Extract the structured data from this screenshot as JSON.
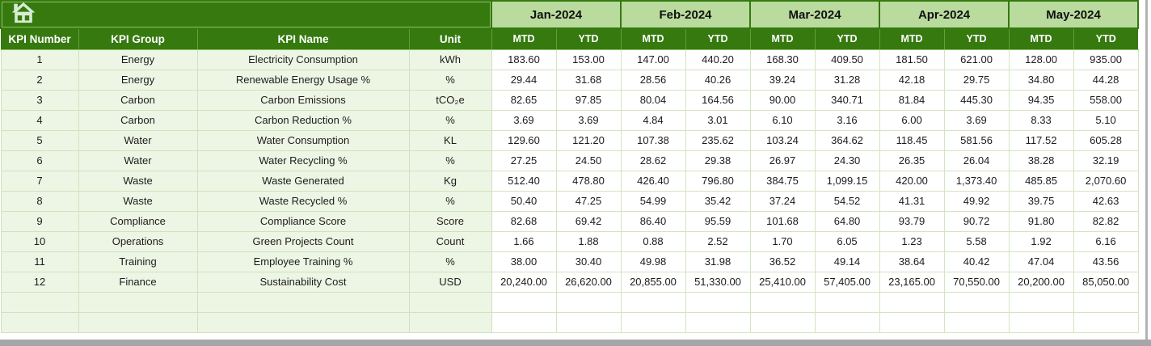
{
  "table": {
    "corner_icon": "home-icon",
    "months": [
      "Jan-2024",
      "Feb-2024",
      "Mar-2024",
      "Apr-2024",
      "May-2024"
    ],
    "value_columns": [
      "MTD",
      "YTD"
    ],
    "columns": [
      "KPI Number",
      "KPI Group",
      "KPI Name",
      "Unit"
    ],
    "rows": [
      {
        "number": "1",
        "group": "Energy",
        "name": "Electricity Consumption",
        "unit": "kWh",
        "values": [
          "183.60",
          "153.00",
          "147.00",
          "440.20",
          "168.30",
          "409.50",
          "181.50",
          "621.00",
          "128.00",
          "935.00"
        ]
      },
      {
        "number": "2",
        "group": "Energy",
        "name": "Renewable Energy Usage %",
        "unit": "%",
        "values": [
          "29.44",
          "31.68",
          "28.56",
          "40.26",
          "39.24",
          "31.28",
          "42.18",
          "29.75",
          "34.80",
          "44.28"
        ]
      },
      {
        "number": "3",
        "group": "Carbon",
        "name": "Carbon Emissions",
        "unit": "tCO₂e",
        "values": [
          "82.65",
          "97.85",
          "80.04",
          "164.56",
          "90.00",
          "340.71",
          "81.84",
          "445.30",
          "94.35",
          "558.00"
        ]
      },
      {
        "number": "4",
        "group": "Carbon",
        "name": "Carbon Reduction %",
        "unit": "%",
        "values": [
          "3.69",
          "3.69",
          "4.84",
          "3.01",
          "6.10",
          "3.16",
          "6.00",
          "3.69",
          "8.33",
          "5.10"
        ]
      },
      {
        "number": "5",
        "group": "Water",
        "name": "Water Consumption",
        "unit": "KL",
        "values": [
          "129.60",
          "121.20",
          "107.38",
          "235.62",
          "103.24",
          "364.62",
          "118.45",
          "581.56",
          "117.52",
          "605.28"
        ]
      },
      {
        "number": "6",
        "group": "Water",
        "name": "Water Recycling %",
        "unit": "%",
        "values": [
          "27.25",
          "24.50",
          "28.62",
          "29.38",
          "26.97",
          "24.30",
          "26.35",
          "26.04",
          "38.28",
          "32.19"
        ]
      },
      {
        "number": "7",
        "group": "Waste",
        "name": "Waste Generated",
        "unit": "Kg",
        "values": [
          "512.40",
          "478.80",
          "426.40",
          "796.80",
          "384.75",
          "1,099.15",
          "420.00",
          "1,373.40",
          "485.85",
          "2,070.60"
        ]
      },
      {
        "number": "8",
        "group": "Waste",
        "name": "Waste Recycled %",
        "unit": "%",
        "values": [
          "50.40",
          "47.25",
          "54.99",
          "35.42",
          "37.24",
          "54.52",
          "41.31",
          "49.92",
          "39.75",
          "42.63"
        ]
      },
      {
        "number": "9",
        "group": "Compliance",
        "name": "Compliance Score",
        "unit": "Score",
        "values": [
          "82.68",
          "69.42",
          "86.40",
          "95.59",
          "101.68",
          "64.80",
          "93.79",
          "90.72",
          "91.80",
          "82.82"
        ]
      },
      {
        "number": "10",
        "group": "Operations",
        "name": "Green Projects Count",
        "unit": "Count",
        "values": [
          "1.66",
          "1.88",
          "0.88",
          "2.52",
          "1.70",
          "6.05",
          "1.23",
          "5.58",
          "1.92",
          "6.16"
        ]
      },
      {
        "number": "11",
        "group": "Training",
        "name": "Employee Training %",
        "unit": "%",
        "values": [
          "38.00",
          "30.40",
          "49.98",
          "31.98",
          "36.52",
          "49.14",
          "38.64",
          "40.42",
          "47.04",
          "43.56"
        ]
      },
      {
        "number": "12",
        "group": "Finance",
        "name": "Sustainability Cost",
        "unit": "USD",
        "values": [
          "20,240.00",
          "26,620.00",
          "20,855.00",
          "51,330.00",
          "25,410.00",
          "57,405.00",
          "23,165.00",
          "70,550.00",
          "20,200.00",
          "85,050.00"
        ]
      }
    ],
    "empty_row_count": 2
  },
  "colors": {
    "dark": "#35790f",
    "month": "#b9db9e",
    "pale": "#edf6e5",
    "grid": "#d2e4c0",
    "sep": "#61a135",
    "outline": "#8cc263",
    "icon": "#d8ecd2",
    "bar": "#a6a6a6",
    "ink": "#1c1c1c"
  }
}
